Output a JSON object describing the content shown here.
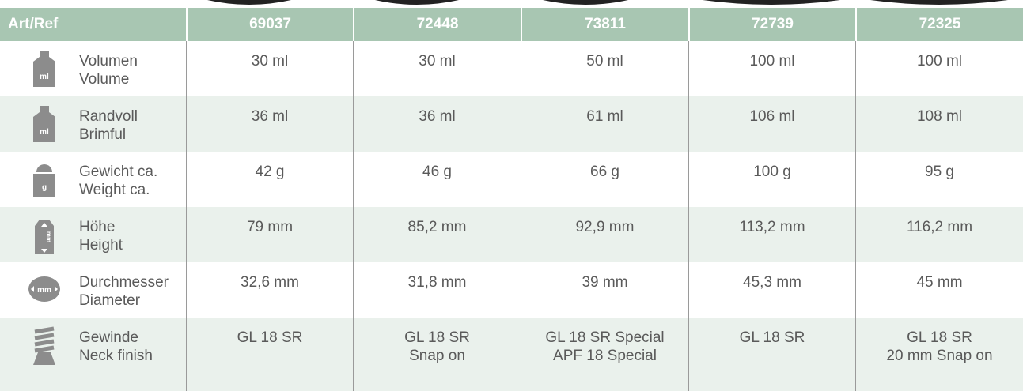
{
  "header": {
    "cells": [
      "Art/Ref",
      "69037",
      "72448",
      "73811",
      "72739",
      "72325"
    ]
  },
  "rows": [
    {
      "icon": "ml",
      "label": [
        "Volumen",
        "Volume"
      ],
      "values": [
        [
          "30 ml"
        ],
        [
          "30 ml"
        ],
        [
          "50 ml"
        ],
        [
          "100 ml"
        ],
        [
          "100 ml"
        ]
      ]
    },
    {
      "icon": "ml",
      "label": [
        "Randvoll",
        "Brimful"
      ],
      "values": [
        [
          "36 ml"
        ],
        [
          "36 ml"
        ],
        [
          "61 ml"
        ],
        [
          "106 ml"
        ],
        [
          "108 ml"
        ]
      ]
    },
    {
      "icon": "g",
      "label": [
        "Gewicht ca.",
        "Weight ca."
      ],
      "values": [
        [
          "42 g"
        ],
        [
          "46 g"
        ],
        [
          "66 g"
        ],
        [
          "100 g"
        ],
        [
          "95 g"
        ]
      ]
    },
    {
      "icon": "mm",
      "label": [
        "Höhe",
        "Height"
      ],
      "values": [
        [
          "79 mm"
        ],
        [
          "85,2 mm"
        ],
        [
          "92,9 mm"
        ],
        [
          "113,2 mm"
        ],
        [
          "116,2 mm"
        ]
      ]
    },
    {
      "icon": "mm",
      "label": [
        "Durchmesser",
        "Diameter"
      ],
      "values": [
        [
          "32,6 mm"
        ],
        [
          "31,8 mm"
        ],
        [
          "39 mm"
        ],
        [
          "45,3 mm"
        ],
        [
          "45 mm"
        ]
      ]
    },
    {
      "label": [
        "Gewinde",
        "Neck finish"
      ],
      "values": [
        [
          "GL 18 SR"
        ],
        [
          "GL 18 SR",
          "Snap on"
        ],
        [
          "GL 18 SR Special",
          "APF 18 Special"
        ],
        [
          "GL 18 SR"
        ],
        [
          "GL 18 SR",
          "20 mm Snap on"
        ]
      ]
    }
  ]
}
